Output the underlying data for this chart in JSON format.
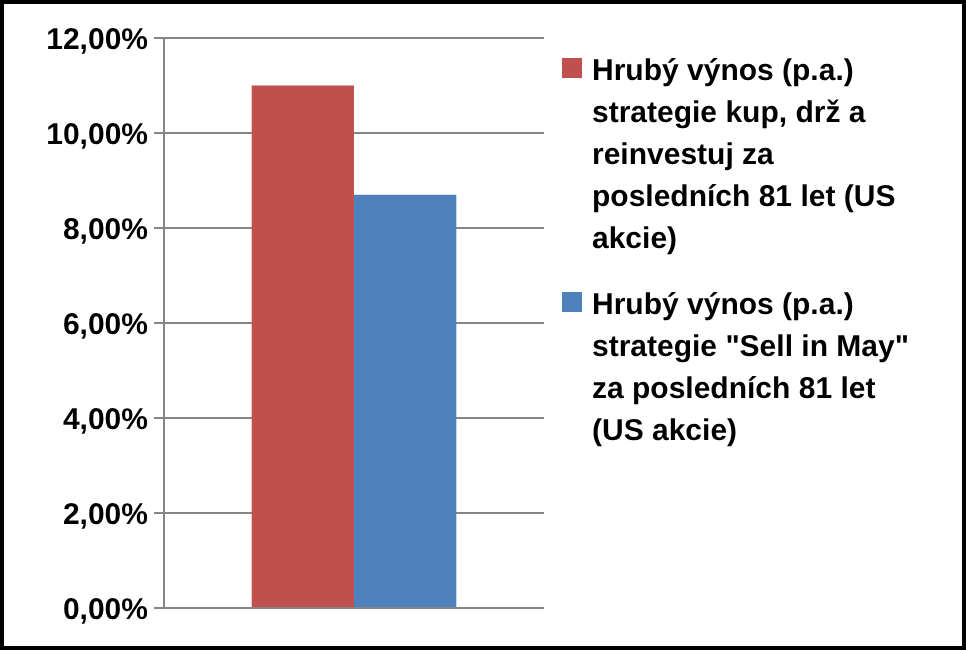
{
  "chart_data": {
    "type": "bar",
    "categories": [
      null
    ],
    "series": [
      {
        "name": "Hrubý výnos (p.a.) strategie kup, drž a reinvestuj za posledních 81 let (US akcie)",
        "color": "#c0504d",
        "values": [
          11.0
        ]
      },
      {
        "name": "Hrubý výnos (p.a.) strategie \"Sell in May\" za posledních 81 let (US akcie)",
        "color": "#4f81bd",
        "values": [
          8.7
        ]
      }
    ],
    "ylim": [
      0,
      12
    ],
    "yticks": [
      {
        "value": 0,
        "label": "0,00%"
      },
      {
        "value": 2,
        "label": "2,00%"
      },
      {
        "value": 4,
        "label": "4,00%"
      },
      {
        "value": 6,
        "label": "6,00%"
      },
      {
        "value": 8,
        "label": "8,00%"
      },
      {
        "value": 10,
        "label": "10,00%"
      },
      {
        "value": 12,
        "label": "12,00%"
      }
    ],
    "grid": "y",
    "legend": "right",
    "tick_labels": "y"
  }
}
